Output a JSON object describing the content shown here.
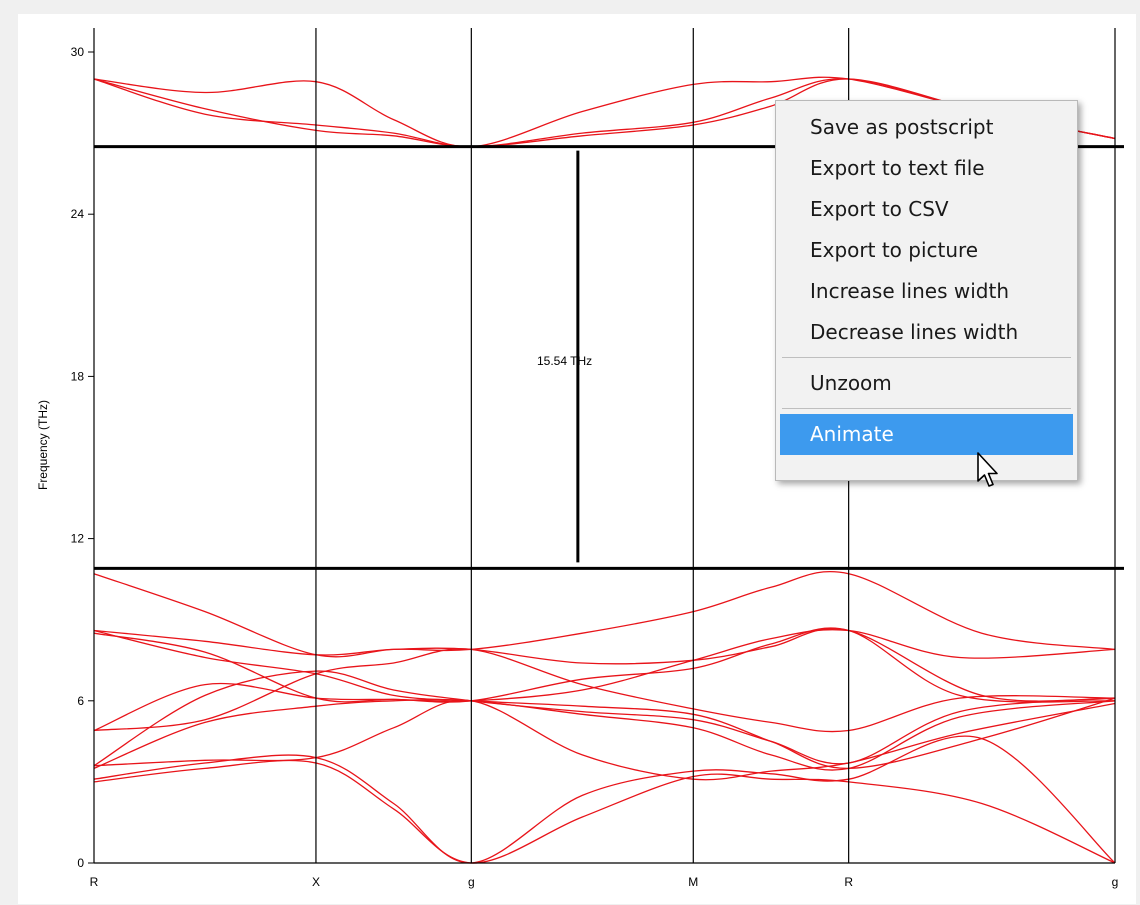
{
  "chart_data": {
    "type": "line",
    "ylabel": "Frequency (THz)",
    "ylim": [
      0,
      31
    ],
    "yticks": [
      0,
      6,
      12,
      18,
      24,
      30
    ],
    "ytick_labels": [
      "0",
      "6",
      "12",
      "18",
      "24",
      "30"
    ],
    "x_high_symmetry": [
      {
        "label": "R",
        "pos": 0.0
      },
      {
        "label": "X",
        "pos": 1.0
      },
      {
        "label": "g",
        "pos": 1.7
      },
      {
        "label": "M",
        "pos": 2.7
      },
      {
        "label": "R",
        "pos": 3.4
      },
      {
        "label": "g",
        "pos": 4.6
      }
    ],
    "band_gap": {
      "lower_edge": 10.9,
      "upper_edge": 26.5,
      "marker_x": 2.18,
      "label": "15.54 THz"
    },
    "line_color": "#e8141a",
    "series": [
      {
        "x": [
          0,
          0.5,
          1.0,
          1.35,
          1.7,
          2.2,
          2.7,
          3.05,
          3.4,
          4.0,
          4.6
        ],
        "y": [
          3.0,
          3.5,
          3.7,
          2.0,
          0.0,
          1.7,
          3.2,
          3.1,
          3.0,
          2.2,
          0.0
        ]
      },
      {
        "x": [
          0,
          0.5,
          1.0,
          1.35,
          1.7,
          2.2,
          2.7,
          3.05,
          3.4,
          4.0,
          4.6
        ],
        "y": [
          3.1,
          3.7,
          3.9,
          2.2,
          0.0,
          2.5,
          3.4,
          3.3,
          3.1,
          4.6,
          0.0
        ]
      },
      {
        "x": [
          0,
          0.5,
          1.0,
          1.35,
          1.7,
          2.2,
          2.7,
          3.05,
          3.4,
          3.9,
          4.6
        ],
        "y": [
          3.6,
          3.8,
          3.9,
          5.0,
          6.0,
          4.0,
          3.1,
          3.4,
          3.7,
          4.8,
          5.9
        ]
      },
      {
        "x": [
          0,
          0.5,
          1.0,
          1.35,
          1.7,
          2.2,
          2.7,
          3.05,
          3.4,
          3.9,
          4.6
        ],
        "y": [
          3.5,
          5.2,
          5.8,
          6.0,
          6.0,
          5.5,
          5.0,
          4.0,
          3.5,
          5.4,
          6.0
        ]
      },
      {
        "x": [
          0,
          0.5,
          1.0,
          1.35,
          1.7,
          2.2,
          2.7,
          3.05,
          3.4,
          3.9,
          4.6
        ],
        "y": [
          3.6,
          6.2,
          7.1,
          6.4,
          6.0,
          5.6,
          5.3,
          4.5,
          3.7,
          5.6,
          6.1
        ]
      },
      {
        "x": [
          0,
          0.5,
          1.0,
          1.35,
          1.7,
          2.2,
          2.7,
          3.05,
          3.4,
          3.9,
          4.6
        ],
        "y": [
          4.9,
          5.3,
          7.0,
          7.4,
          7.9,
          6.6,
          5.7,
          5.2,
          4.9,
          6.1,
          6.1
        ]
      },
      {
        "x": [
          0,
          0.5,
          1.0,
          1.35,
          1.7,
          2.2,
          2.7,
          3.05,
          3.4,
          3.9,
          4.6
        ],
        "y": [
          4.9,
          6.6,
          6.1,
          6.05,
          6.0,
          6.8,
          7.2,
          8.1,
          8.6,
          6.2,
          6.0
        ]
      },
      {
        "x": [
          0,
          0.5,
          1.0,
          1.35,
          1.7,
          2.2,
          2.7,
          3.05,
          3.4,
          3.9,
          4.6
        ],
        "y": [
          8.5,
          7.8,
          6.1,
          6.05,
          6.0,
          6.4,
          7.5,
          8.3,
          8.6,
          7.6,
          7.9
        ]
      },
      {
        "x": [
          0,
          0.5,
          1.0,
          1.35,
          1.7,
          2.2,
          2.7,
          3.05,
          3.4,
          4.0,
          4.6
        ],
        "y": [
          8.6,
          7.6,
          7.0,
          6.2,
          6.0,
          5.8,
          5.5,
          4.5,
          3.5,
          4.6,
          6.1
        ]
      },
      {
        "x": [
          0,
          0.5,
          1.0,
          1.35,
          1.7,
          2.2,
          2.7,
          3.05,
          3.4,
          4.0,
          4.6
        ],
        "y": [
          8.6,
          8.2,
          7.7,
          7.9,
          7.9,
          7.4,
          7.5,
          8.0,
          8.6,
          6.2,
          6.1
        ]
      },
      {
        "x": [
          0,
          0.5,
          1.0,
          1.35,
          1.7,
          2.2,
          2.7,
          3.05,
          3.4,
          4.0,
          4.6
        ],
        "y": [
          10.7,
          9.3,
          7.7,
          7.9,
          7.9,
          8.5,
          9.3,
          10.2,
          10.7,
          8.5,
          7.9
        ]
      },
      {
        "x": [
          0,
          0.5,
          1.0,
          1.35,
          1.7,
          2.2,
          2.7,
          3.05,
          3.4,
          4.0,
          4.6
        ],
        "y": [
          29.0,
          28.5,
          28.9,
          27.5,
          26.5,
          27.8,
          28.8,
          28.9,
          29.0,
          27.8,
          26.8
        ]
      },
      {
        "x": [
          0,
          0.5,
          1.0,
          1.35,
          1.7,
          2.2,
          2.7,
          3.05,
          3.4,
          4.0,
          4.6
        ],
        "y": [
          29.0,
          27.7,
          27.3,
          27.0,
          26.5,
          27.0,
          27.4,
          28.3,
          29.0,
          27.8,
          26.8
        ]
      },
      {
        "x": [
          0,
          0.5,
          1.0,
          1.35,
          1.7,
          2.2,
          2.7,
          3.05,
          3.4,
          4.0,
          4.6
        ],
        "y": [
          29.0,
          27.9,
          27.1,
          26.9,
          26.5,
          26.9,
          27.3,
          28.0,
          29.0,
          27.8,
          26.8
        ]
      }
    ]
  },
  "context_menu": {
    "items": [
      {
        "label": "Save as postscript"
      },
      {
        "label": "Export to text file"
      },
      {
        "label": "Export to CSV"
      },
      {
        "label": "Export to picture"
      },
      {
        "label": "Increase lines width"
      },
      {
        "label": "Decrease lines width"
      }
    ],
    "unzoom_label": "Unzoom",
    "animate_label": "Animate",
    "highlight_color": "#3d9aee"
  }
}
